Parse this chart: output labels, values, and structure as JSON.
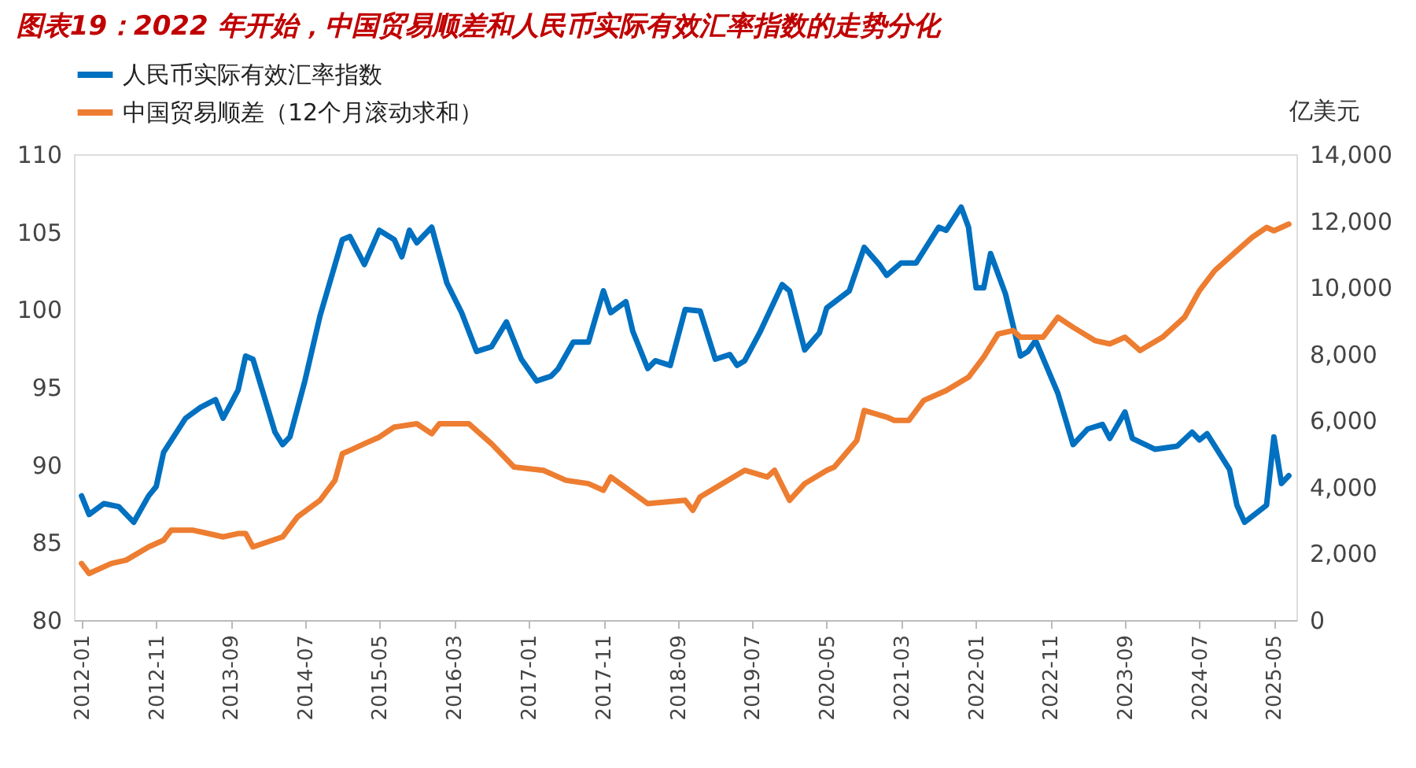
{
  "chart_data": {
    "type": "line",
    "title": "图表19：2022 年开始，中国贸易顺差和人民币实际有效汇率指数的走势分化",
    "y2label": "亿美元",
    "legend": "top",
    "xlim": [
      "2011-12",
      "2025-08"
    ],
    "xticks": [
      "2012-01",
      "2012-11",
      "2013-09",
      "2014-07",
      "2015-05",
      "2016-03",
      "2017-01",
      "2017-11",
      "2018-09",
      "2019-07",
      "2020-05",
      "2021-03",
      "2022-01",
      "2022-11",
      "2023-09",
      "2024-07",
      "2025-05"
    ],
    "ylim": [
      80,
      110
    ],
    "yticks": [
      80,
      85,
      90,
      95,
      100,
      105,
      110
    ],
    "y2lim": [
      0,
      14000
    ],
    "y2ticks": [
      0,
      {
        "value": 2000,
        "label": "2,000"
      },
      {
        "value": 4000,
        "label": "4,000"
      },
      {
        "value": 6000,
        "label": "6,000"
      },
      {
        "value": 8000,
        "label": "8,000"
      },
      {
        "value": 10000,
        "label": "10,000"
      },
      {
        "value": 12000,
        "label": "12,000"
      },
      {
        "value": 14000,
        "label": "14,000"
      }
    ],
    "series": [
      {
        "name": "人民币实际有效汇率指数",
        "color": "#0070c0",
        "x": [
          "2012-01",
          "2012-02",
          "2012-04",
          "2012-06",
          "2012-08",
          "2012-10",
          "2012-11",
          "2012-12",
          "2013-03",
          "2013-05",
          "2013-07",
          "2013-08",
          "2013-10",
          "2013-11",
          "2013-12",
          "2014-03",
          "2014-04",
          "2014-05",
          "2014-07",
          "2014-09",
          "2014-12",
          "2015-01",
          "2015-03",
          "2015-05",
          "2015-07",
          "2015-08",
          "2015-09",
          "2015-10",
          "2015-12",
          "2016-02",
          "2016-04",
          "2016-06",
          "2016-08",
          "2016-10",
          "2016-12",
          "2017-02",
          "2017-04",
          "2017-05",
          "2017-07",
          "2017-09",
          "2017-11",
          "2017-12",
          "2018-02",
          "2018-03",
          "2018-05",
          "2018-06",
          "2018-08",
          "2018-10",
          "2018-12",
          "2019-02",
          "2019-04",
          "2019-05",
          "2019-06",
          "2019-08",
          "2019-11",
          "2019-12",
          "2020-02",
          "2020-04",
          "2020-05",
          "2020-08",
          "2020-10",
          "2020-12",
          "2021-01",
          "2021-03",
          "2021-05",
          "2021-08",
          "2021-09",
          "2021-11",
          "2021-12",
          "2022-01",
          "2022-02",
          "2022-03",
          "2022-05",
          "2022-07",
          "2022-08",
          "2022-09",
          "2022-12",
          "2023-02",
          "2023-04",
          "2023-06",
          "2023-07",
          "2023-09",
          "2023-10",
          "2024-01",
          "2024-04",
          "2024-06",
          "2024-07",
          "2024-08",
          "2024-11",
          "2024-12",
          "2025-01",
          "2025-04",
          "2025-05",
          "2025-06",
          "2025-07"
        ],
        "values": [
          88.0,
          86.8,
          87.5,
          87.3,
          86.3,
          88.0,
          88.6,
          90.8,
          93.0,
          93.7,
          94.2,
          93.0,
          94.8,
          97.0,
          96.8,
          92.1,
          91.3,
          91.8,
          95.4,
          99.6,
          104.5,
          104.7,
          102.9,
          105.1,
          104.5,
          103.4,
          105.1,
          104.3,
          105.3,
          101.7,
          99.8,
          97.3,
          97.6,
          99.2,
          96.8,
          95.4,
          95.7,
          96.2,
          97.9,
          97.9,
          101.2,
          99.8,
          100.5,
          98.6,
          96.2,
          96.7,
          96.4,
          100.0,
          99.9,
          96.8,
          97.1,
          96.4,
          96.7,
          98.5,
          101.6,
          101.2,
          97.4,
          98.5,
          100.1,
          101.2,
          104.0,
          102.9,
          102.2,
          103.0,
          103.0,
          105.3,
          105.1,
          106.6,
          105.3,
          101.4,
          101.4,
          103.6,
          101.0,
          97.0,
          97.3,
          98.0,
          94.6,
          91.3,
          92.3,
          92.6,
          91.7,
          93.4,
          91.7,
          91.0,
          91.2,
          92.1,
          91.6,
          92.0,
          89.7,
          87.4,
          86.3,
          87.4,
          91.8,
          88.8,
          89.3
        ]
      },
      {
        "name": "中国贸易顺差（12个月滚动求和）",
        "color": "#ed7d31",
        "axis": "y2",
        "x": [
          "2012-01",
          "2012-02",
          "2012-05",
          "2012-07",
          "2012-10",
          "2012-12",
          "2013-01",
          "2013-04",
          "2013-08",
          "2013-10",
          "2013-11",
          "2013-12",
          "2014-04",
          "2014-06",
          "2014-09",
          "2014-11",
          "2014-12",
          "2015-01",
          "2015-03",
          "2015-05",
          "2015-07",
          "2015-10",
          "2015-12",
          "2016-01",
          "2016-05",
          "2016-08",
          "2016-11",
          "2017-03",
          "2017-06",
          "2017-09",
          "2017-11",
          "2017-12",
          "2018-05",
          "2018-10",
          "2018-11",
          "2018-12",
          "2019-06",
          "2019-09",
          "2019-10",
          "2019-12",
          "2020-02",
          "2020-05",
          "2020-06",
          "2020-09",
          "2020-10",
          "2021-01",
          "2021-02",
          "2021-04",
          "2021-06",
          "2021-09",
          "2021-12",
          "2022-02",
          "2022-04",
          "2022-06",
          "2022-07",
          "2022-10",
          "2022-12",
          "2023-02",
          "2023-05",
          "2023-07",
          "2023-09",
          "2023-11",
          "2024-02",
          "2024-05",
          "2024-07",
          "2024-09",
          "2024-12",
          "2025-02",
          "2025-04",
          "2025-05",
          "2025-07"
        ],
        "values": [
          1700,
          1400,
          1700,
          1800,
          2200,
          2400,
          2700,
          2700,
          2500,
          2600,
          2600,
          2200,
          2500,
          3100,
          3600,
          4200,
          5000,
          5100,
          5300,
          5500,
          5800,
          5900,
          5600,
          5900,
          5900,
          5300,
          4600,
          4500,
          4200,
          4100,
          3900,
          4300,
          3500,
          3600,
          3300,
          3700,
          4500,
          4300,
          4500,
          3600,
          4100,
          4500,
          4600,
          5400,
          6300,
          6100,
          6000,
          6000,
          6600,
          6900,
          7300,
          7900,
          8600,
          8700,
          8500,
          8500,
          9100,
          8800,
          8400,
          8300,
          8500,
          8100,
          8500,
          9100,
          9900,
          10500,
          11100,
          11500,
          11800,
          11700,
          11900
        ]
      }
    ]
  }
}
